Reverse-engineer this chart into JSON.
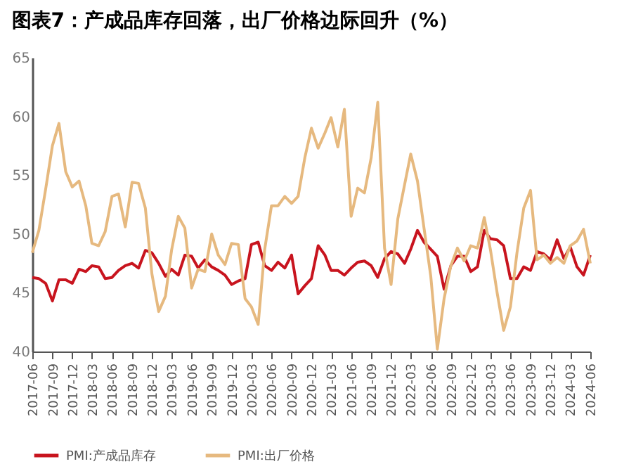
{
  "chart_data": {
    "type": "line",
    "title": "图表7：产成品库存回落，出厂价格边际回升（%）",
    "x": [
      "2017-06",
      "2017-07",
      "2017-08",
      "2017-09",
      "2017-10",
      "2017-11",
      "2017-12",
      "2018-01",
      "2018-02",
      "2018-03",
      "2018-04",
      "2018-05",
      "2018-06",
      "2018-07",
      "2018-08",
      "2018-09",
      "2018-10",
      "2018-11",
      "2018-12",
      "2019-01",
      "2019-02",
      "2019-03",
      "2019-04",
      "2019-05",
      "2019-06",
      "2019-07",
      "2019-08",
      "2019-09",
      "2019-10",
      "2019-11",
      "2019-12",
      "2020-01",
      "2020-02",
      "2020-03",
      "2020-04",
      "2020-05",
      "2020-06",
      "2020-07",
      "2020-08",
      "2020-09",
      "2020-10",
      "2020-11",
      "2020-12",
      "2021-01",
      "2021-02",
      "2021-03",
      "2021-04",
      "2021-05",
      "2021-06",
      "2021-07",
      "2021-08",
      "2021-09",
      "2021-10",
      "2021-11",
      "2021-12",
      "2022-01",
      "2022-02",
      "2022-03",
      "2022-04",
      "2022-05",
      "2022-06",
      "2022-07",
      "2022-08",
      "2022-09",
      "2022-10",
      "2022-11",
      "2022-12",
      "2023-01",
      "2023-02",
      "2023-03",
      "2023-04",
      "2023-05",
      "2023-06",
      "2023-07",
      "2023-08",
      "2023-09",
      "2023-10",
      "2023-11",
      "2023-12",
      "2024-01",
      "2024-02",
      "2024-03",
      "2024-04",
      "2024-05",
      "2024-06"
    ],
    "series": [
      {
        "name": "PMI:产成品库存",
        "color": "#c8141e",
        "values": [
          46.3,
          46.2,
          45.8,
          44.3,
          46.1,
          46.1,
          45.8,
          47.0,
          46.8,
          47.3,
          47.2,
          46.2,
          46.3,
          46.9,
          47.3,
          47.5,
          47.1,
          48.6,
          48.4,
          47.5,
          46.4,
          47.0,
          46.5,
          48.2,
          48.1,
          47.1,
          47.8,
          47.2,
          46.9,
          46.5,
          45.7,
          46.0,
          46.2,
          49.1,
          49.3,
          47.3,
          46.9,
          47.6,
          47.1,
          48.2,
          44.9,
          45.6,
          46.2,
          49.0,
          48.2,
          46.9,
          46.9,
          46.5,
          47.1,
          47.6,
          47.7,
          47.3,
          46.3,
          47.9,
          48.5,
          48.3,
          47.5,
          48.7,
          50.3,
          49.3,
          48.7,
          48.1,
          45.3,
          47.3,
          48.1,
          48.1,
          46.8,
          47.2,
          50.3,
          49.6,
          49.5,
          49.0,
          46.2,
          46.2,
          47.2,
          46.9,
          48.5,
          48.3,
          47.8,
          49.5,
          47.9,
          48.9,
          47.2,
          46.5,
          48.2
        ]
      },
      {
        "name": "PMI:出厂价格",
        "color": "#e6b97f",
        "values": [
          48.4,
          50.3,
          53.8,
          57.5,
          59.4,
          55.3,
          54.0,
          54.5,
          52.4,
          49.2,
          49.0,
          50.2,
          53.2,
          53.4,
          50.6,
          54.4,
          54.3,
          52.2,
          46.6,
          43.4,
          44.7,
          48.6,
          51.5,
          50.5,
          45.4,
          47.0,
          46.8,
          50.0,
          48.2,
          47.4,
          49.2,
          49.1,
          44.5,
          43.8,
          42.3,
          48.7,
          52.4,
          52.4,
          53.2,
          52.6,
          53.2,
          56.5,
          59.0,
          57.3,
          58.6,
          59.9,
          57.4,
          60.6,
          51.5,
          53.9,
          53.5,
          56.5,
          61.2,
          48.8,
          45.7,
          51.3,
          54.2,
          56.8,
          54.5,
          50.5,
          46.4,
          40.2,
          44.5,
          47.3,
          48.8,
          47.7,
          49.0,
          48.8,
          51.4,
          48.7,
          45.0,
          41.8,
          43.8,
          48.4,
          52.2,
          53.7,
          47.8,
          48.2,
          47.5,
          48.0,
          47.5,
          49.0,
          49.4,
          50.4,
          47.5
        ]
      }
    ],
    "xlim": [
      "2017-06",
      "2024-06"
    ],
    "xticks": [
      "2017-06",
      "2017-09",
      "2017-12",
      "2018-03",
      "2018-06",
      "2018-09",
      "2018-12",
      "2019-03",
      "2019-06",
      "2019-09",
      "2019-12",
      "2020-03",
      "2020-06",
      "2020-09",
      "2020-12",
      "2021-03",
      "2021-06",
      "2021-09",
      "2021-12",
      "2022-03",
      "2022-06",
      "2022-09",
      "2022-12",
      "2023-03",
      "2023-06",
      "2023-09",
      "2023-12",
      "2024-03",
      "2024-06"
    ],
    "ylim": [
      40,
      65
    ],
    "yticks": [
      40,
      45,
      50,
      55,
      60,
      65
    ],
    "grid": false,
    "legend": "bottom",
    "line_style": "solid"
  }
}
